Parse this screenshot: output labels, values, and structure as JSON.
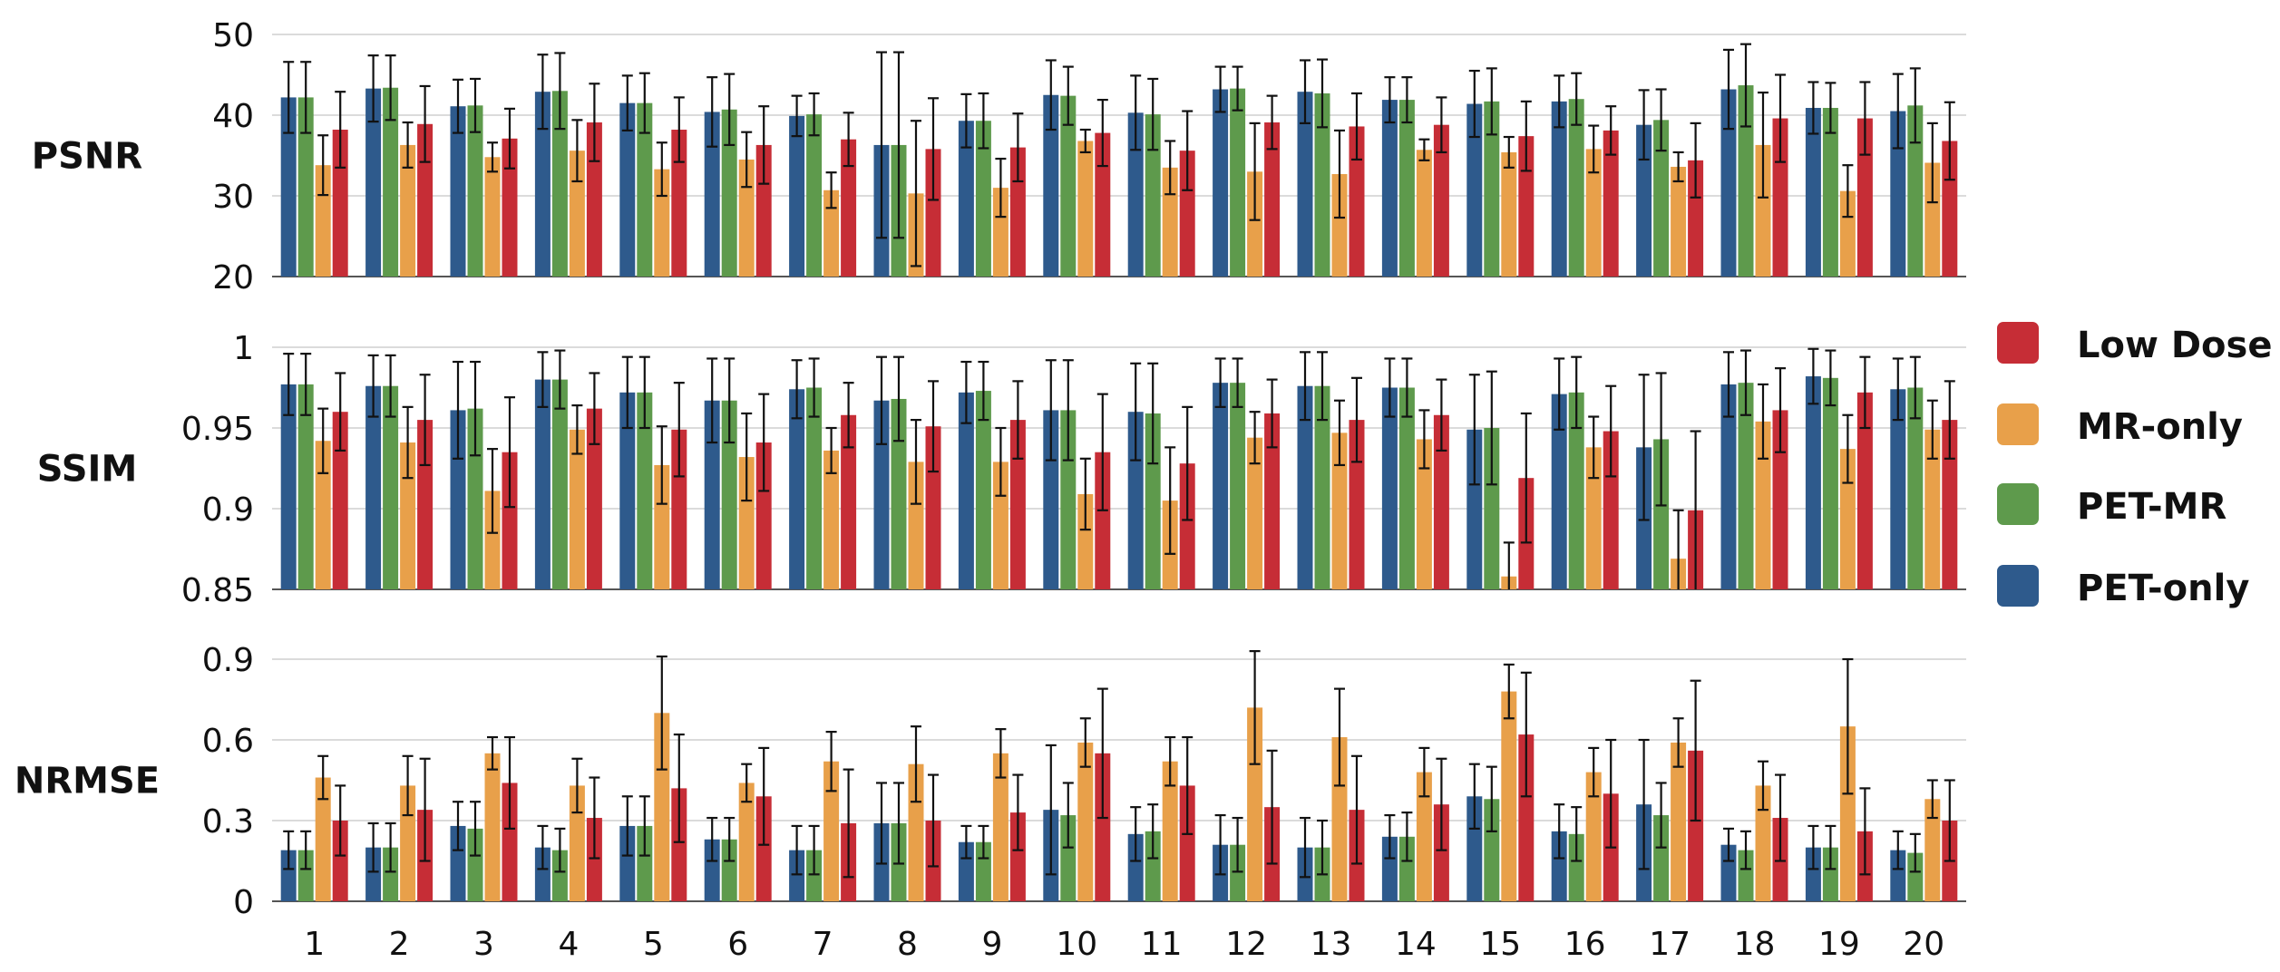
{
  "chart_data": [
    {
      "type": "bar",
      "title": "PSNR",
      "ylim": [
        20,
        50
      ],
      "yticks": [
        "20",
        "30",
        "40",
        "50"
      ],
      "categories": [
        "1",
        "2",
        "3",
        "4",
        "5",
        "6",
        "7",
        "8",
        "9",
        "10",
        "11",
        "12",
        "13",
        "14",
        "15",
        "16",
        "17",
        "18",
        "19",
        "20"
      ],
      "series": [
        {
          "name": "PET-only",
          "values": [
            42.2,
            43.3,
            41.1,
            42.9,
            41.5,
            40.4,
            39.9,
            36.3,
            39.3,
            42.5,
            40.3,
            43.2,
            42.9,
            41.9,
            41.4,
            41.7,
            38.8,
            43.2,
            40.9,
            40.5
          ],
          "errors": [
            4.4,
            4.1,
            3.3,
            4.6,
            3.4,
            4.3,
            2.5,
            11.5,
            3.3,
            4.3,
            4.6,
            2.8,
            3.9,
            2.8,
            4.1,
            3.2,
            4.3,
            4.9,
            3.2,
            4.6
          ]
        },
        {
          "name": "PET-MR",
          "values": [
            42.2,
            43.4,
            41.2,
            43.0,
            41.5,
            40.7,
            40.1,
            36.3,
            39.3,
            42.4,
            40.1,
            43.3,
            42.7,
            41.9,
            41.7,
            42.0,
            39.4,
            43.7,
            40.9,
            41.2
          ],
          "errors": [
            4.4,
            4.0,
            3.3,
            4.7,
            3.7,
            4.4,
            2.6,
            11.5,
            3.4,
            3.6,
            4.4,
            2.7,
            4.2,
            2.8,
            4.1,
            3.2,
            3.8,
            5.1,
            3.1,
            4.6
          ]
        },
        {
          "name": "MR-only",
          "values": [
            33.8,
            36.3,
            34.8,
            35.6,
            33.3,
            34.5,
            30.7,
            30.3,
            31.0,
            36.8,
            33.5,
            33.0,
            32.7,
            35.7,
            35.4,
            35.8,
            33.6,
            36.3,
            30.6,
            34.1
          ],
          "errors": [
            3.7,
            2.8,
            1.8,
            3.8,
            3.3,
            3.4,
            2.2,
            9.0,
            3.6,
            1.4,
            3.3,
            6.0,
            5.4,
            1.3,
            1.9,
            2.9,
            1.8,
            6.5,
            3.2,
            4.9
          ]
        },
        {
          "name": "Low Dose",
          "values": [
            38.2,
            38.9,
            37.1,
            39.1,
            38.2,
            36.3,
            37.0,
            35.8,
            36.0,
            37.8,
            35.6,
            39.1,
            38.6,
            38.8,
            37.4,
            38.1,
            34.4,
            39.6,
            39.6,
            36.8
          ]
        }
      ],
      "extra_errors_low_dose": [
        4.7,
        4.7,
        3.7,
        4.8,
        4.0,
        4.8,
        3.3,
        6.3,
        4.2,
        4.1,
        4.9,
        3.3,
        4.1,
        3.4,
        4.3,
        3.0,
        4.6,
        5.4,
        4.5,
        4.8
      ]
    },
    {
      "type": "bar",
      "title": "SSIM",
      "ylim": [
        0.85,
        1
      ],
      "yticks": [
        "0.85",
        "0.9",
        "0.95",
        "1"
      ],
      "categories": [
        "1",
        "2",
        "3",
        "4",
        "5",
        "6",
        "7",
        "8",
        "9",
        "10",
        "11",
        "12",
        "13",
        "14",
        "15",
        "16",
        "17",
        "18",
        "19",
        "20"
      ],
      "series": [
        {
          "name": "PET-only",
          "values": [
            0.977,
            0.976,
            0.961,
            0.98,
            0.972,
            0.967,
            0.974,
            0.967,
            0.972,
            0.961,
            0.96,
            0.978,
            0.976,
            0.975,
            0.949,
            0.971,
            0.938,
            0.977,
            0.982,
            0.974
          ],
          "errors": [
            0.019,
            0.019,
            0.03,
            0.017,
            0.022,
            0.026,
            0.018,
            0.027,
            0.019,
            0.031,
            0.03,
            0.015,
            0.021,
            0.018,
            0.034,
            0.022,
            0.045,
            0.02,
            0.017,
            0.019
          ]
        },
        {
          "name": "PET-MR",
          "values": [
            0.977,
            0.976,
            0.962,
            0.98,
            0.972,
            0.967,
            0.975,
            0.968,
            0.973,
            0.961,
            0.959,
            0.978,
            0.976,
            0.975,
            0.95,
            0.972,
            0.943,
            0.978,
            0.981,
            0.975
          ],
          "errors": [
            0.019,
            0.019,
            0.029,
            0.018,
            0.022,
            0.026,
            0.018,
            0.026,
            0.018,
            0.031,
            0.031,
            0.015,
            0.021,
            0.018,
            0.035,
            0.022,
            0.041,
            0.02,
            0.017,
            0.019
          ]
        },
        {
          "name": "MR-only",
          "values": [
            0.942,
            0.941,
            0.911,
            0.949,
            0.927,
            0.932,
            0.936,
            0.929,
            0.929,
            0.909,
            0.905,
            0.944,
            0.947,
            0.943,
            0.858,
            0.938,
            0.869,
            0.954,
            0.937,
            0.949
          ],
          "errors": [
            0.02,
            0.022,
            0.026,
            0.015,
            0.024,
            0.027,
            0.014,
            0.026,
            0.021,
            0.022,
            0.033,
            0.016,
            0.02,
            0.018,
            0.021,
            0.019,
            0.03,
            0.023,
            0.021,
            0.018
          ]
        },
        {
          "name": "Low Dose",
          "values": [
            0.96,
            0.955,
            0.935,
            0.962,
            0.949,
            0.941,
            0.958,
            0.951,
            0.955,
            0.935,
            0.928,
            0.959,
            0.955,
            0.958,
            0.919,
            0.948,
            0.899,
            0.961,
            0.972,
            0.955
          ]
        }
      ],
      "extra_errors_low_dose": [
        0.024,
        0.028,
        0.034,
        0.022,
        0.029,
        0.03,
        0.02,
        0.028,
        0.024,
        0.036,
        0.035,
        0.021,
        0.026,
        0.022,
        0.04,
        0.028,
        0.049,
        0.026,
        0.022,
        0.024
      ]
    },
    {
      "type": "bar",
      "title": "NRMSE",
      "ylim": [
        0,
        0.9
      ],
      "yticks": [
        "0",
        "0.3",
        "0.6",
        "0.9"
      ],
      "categories": [
        "1",
        "2",
        "3",
        "4",
        "5",
        "6",
        "7",
        "8",
        "9",
        "10",
        "11",
        "12",
        "13",
        "14",
        "15",
        "16",
        "17",
        "18",
        "19",
        "20"
      ],
      "series": [
        {
          "name": "PET-only",
          "values": [
            0.19,
            0.2,
            0.28,
            0.2,
            0.28,
            0.23,
            0.19,
            0.29,
            0.22,
            0.34,
            0.25,
            0.21,
            0.2,
            0.24,
            0.39,
            0.26,
            0.36,
            0.21,
            0.2,
            0.19
          ],
          "errors": [
            0.07,
            0.09,
            0.09,
            0.08,
            0.11,
            0.08,
            0.09,
            0.15,
            0.06,
            0.24,
            0.1,
            0.11,
            0.11,
            0.08,
            0.12,
            0.1,
            0.24,
            0.06,
            0.08,
            0.07
          ]
        },
        {
          "name": "PET-MR",
          "values": [
            0.19,
            0.2,
            0.27,
            0.19,
            0.28,
            0.23,
            0.19,
            0.29,
            0.22,
            0.32,
            0.26,
            0.21,
            0.2,
            0.24,
            0.38,
            0.25,
            0.32,
            0.19,
            0.2,
            0.18
          ],
          "errors": [
            0.07,
            0.09,
            0.1,
            0.08,
            0.11,
            0.08,
            0.09,
            0.15,
            0.06,
            0.12,
            0.1,
            0.1,
            0.1,
            0.09,
            0.12,
            0.1,
            0.12,
            0.07,
            0.08,
            0.07
          ]
        },
        {
          "name": "MR-only",
          "values": [
            0.46,
            0.43,
            0.55,
            0.43,
            0.7,
            0.44,
            0.52,
            0.51,
            0.55,
            0.59,
            0.52,
            0.72,
            0.61,
            0.48,
            0.78,
            0.48,
            0.59,
            0.43,
            0.65,
            0.38
          ],
          "errors": [
            0.08,
            0.11,
            0.06,
            0.1,
            0.21,
            0.07,
            0.11,
            0.14,
            0.09,
            0.09,
            0.09,
            0.21,
            0.18,
            0.09,
            0.1,
            0.09,
            0.09,
            0.09,
            0.25,
            0.07
          ]
        },
        {
          "name": "Low Dose",
          "values": [
            0.3,
            0.34,
            0.44,
            0.31,
            0.42,
            0.39,
            0.29,
            0.3,
            0.33,
            0.55,
            0.43,
            0.35,
            0.34,
            0.36,
            0.62,
            0.4,
            0.56,
            0.31,
            0.26,
            0.3
          ]
        }
      ],
      "extra_errors_low_dose": [
        0.13,
        0.19,
        0.17,
        0.15,
        0.2,
        0.18,
        0.2,
        0.17,
        0.14,
        0.24,
        0.18,
        0.21,
        0.2,
        0.17,
        0.23,
        0.2,
        0.26,
        0.16,
        0.16,
        0.15
      ]
    }
  ],
  "legend": {
    "items": [
      {
        "label": "Low Dose",
        "color": "#c62d36"
      },
      {
        "label": "MR-only",
        "color": "#e8a04a"
      },
      {
        "label": "PET-MR",
        "color": "#5e9a4c"
      },
      {
        "label": "PET-only",
        "color": "#2e5a8c"
      }
    ]
  },
  "colors": {
    "PET-only": "#2e5a8c",
    "PET-MR": "#5e9a4c",
    "MR-only": "#e8a04a",
    "Low Dose": "#c62d36",
    "grid": "#cfcfcf",
    "axis": "#555555",
    "errorbar": "#111111"
  }
}
